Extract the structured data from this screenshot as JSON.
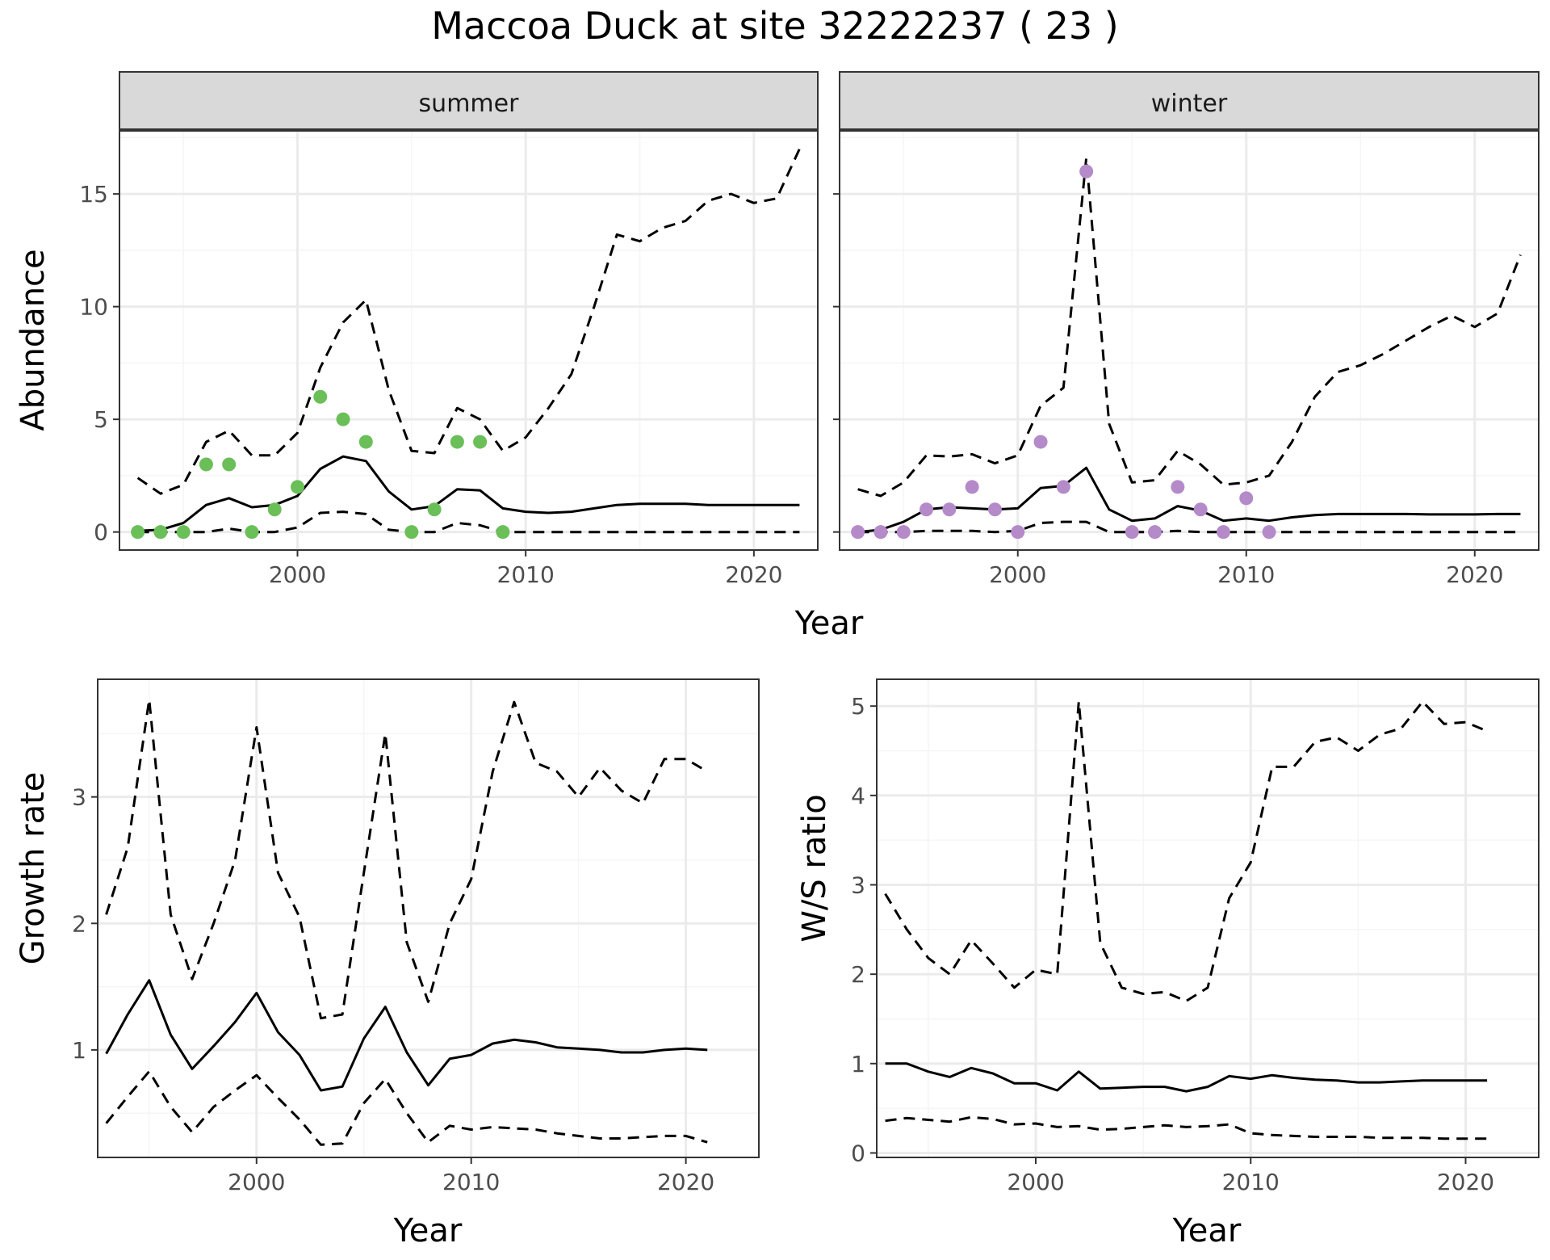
{
  "title": "Maccoa Duck at site 32222237 ( 23 )",
  "colors": {
    "summer_points": "#6bbf59",
    "winter_points": "#b48ac9",
    "line": "#000000",
    "strip_bg": "#d9d9d9",
    "grid_major": "#ebebeb",
    "grid_minor": "#f5f5f5"
  },
  "chart_data": [
    {
      "id": "abundance-summer",
      "type": "line",
      "facet": "summer",
      "xlabel": "Year",
      "ylabel": "Abundance",
      "xlim": [
        1992.2,
        2022.8
      ],
      "ylim": [
        -0.8,
        17.8
      ],
      "xticks": [
        2000,
        2010,
        2020
      ],
      "yticks": [
        0,
        5,
        10,
        15
      ],
      "grid": true,
      "points": {
        "x": [
          1993,
          1994,
          1995,
          1996,
          1997,
          1998,
          1999,
          2000,
          2001,
          2002,
          2003,
          2005,
          2006,
          2007,
          2008,
          2009
        ],
        "y": [
          0,
          0,
          0,
          3,
          3,
          0,
          1,
          2,
          6,
          5,
          4,
          0,
          1,
          4,
          4,
          0
        ]
      },
      "series": [
        {
          "role": "estimate",
          "dash": "solid",
          "x": [
            1993,
            1994,
            1995,
            1996,
            1997,
            1998,
            1999,
            2000,
            2001,
            2002,
            2003,
            2004,
            2005,
            2006,
            2007,
            2008,
            2009,
            2010,
            2011,
            2012,
            2013,
            2014,
            2015,
            2016,
            2017,
            2018,
            2019,
            2020,
            2021,
            2022
          ],
          "y": [
            0.05,
            0.1,
            0.4,
            1.2,
            1.5,
            1.1,
            1.2,
            1.6,
            2.8,
            3.35,
            3.15,
            1.8,
            1.0,
            1.15,
            1.9,
            1.85,
            1.05,
            0.9,
            0.85,
            0.9,
            1.05,
            1.2,
            1.25,
            1.25,
            1.25,
            1.2,
            1.2,
            1.2,
            1.2,
            1.2
          ]
        },
        {
          "role": "upper",
          "dash": "dashed",
          "x": [
            1993,
            1994,
            1995,
            1996,
            1997,
            1998,
            1999,
            2000,
            2001,
            2002,
            2003,
            2004,
            2005,
            2006,
            2007,
            2008,
            2009,
            2010,
            2011,
            2012,
            2013,
            2014,
            2015,
            2016,
            2017,
            2018,
            2019,
            2020,
            2021,
            2022
          ],
          "y": [
            2.4,
            1.7,
            2.1,
            4.0,
            4.5,
            3.4,
            3.4,
            4.4,
            7.3,
            9.3,
            10.3,
            6.3,
            3.6,
            3.5,
            5.5,
            5.0,
            3.6,
            4.2,
            5.5,
            7.0,
            10.0,
            13.2,
            12.9,
            13.5,
            13.8,
            14.7,
            15.0,
            14.6,
            14.8,
            17.0
          ]
        },
        {
          "role": "lower",
          "dash": "dashed",
          "x": [
            1993,
            1994,
            1995,
            1996,
            1997,
            1998,
            1999,
            2000,
            2001,
            2002,
            2003,
            2004,
            2005,
            2006,
            2007,
            2008,
            2009,
            2010,
            2011,
            2012,
            2013,
            2014,
            2015,
            2016,
            2017,
            2018,
            2019,
            2020,
            2021,
            2022
          ],
          "y": [
            0,
            0,
            0,
            0,
            0.15,
            0,
            0,
            0.2,
            0.85,
            0.9,
            0.8,
            0.1,
            0,
            0,
            0.4,
            0.3,
            0,
            0,
            0,
            0,
            0,
            0,
            0,
            0,
            0,
            0,
            0,
            0,
            0,
            0
          ]
        }
      ]
    },
    {
      "id": "abundance-winter",
      "type": "line",
      "facet": "winter",
      "xlabel": "Year",
      "ylabel": "Abundance",
      "xlim": [
        1992.2,
        2022.8
      ],
      "ylim": [
        -0.8,
        17.8
      ],
      "xticks": [
        2000,
        2010,
        2020
      ],
      "yticks": [
        0,
        5,
        10,
        15
      ],
      "grid": true,
      "points": {
        "x": [
          1993,
          1994,
          1995,
          1996,
          1997,
          1998,
          1999,
          2000,
          2001,
          2002,
          2003,
          2005,
          2006,
          2007,
          2008,
          2009,
          2010,
          2011
        ],
        "y": [
          0,
          0,
          0,
          1,
          1,
          2,
          1,
          0,
          4,
          2,
          16,
          0,
          0,
          2,
          1,
          0,
          1.5,
          0
        ]
      },
      "series": [
        {
          "role": "estimate",
          "dash": "solid",
          "x": [
            1993,
            1994,
            1995,
            1996,
            1997,
            1998,
            1999,
            2000,
            2001,
            2002,
            2003,
            2004,
            2005,
            2006,
            2007,
            2008,
            2009,
            2010,
            2011,
            2012,
            2013,
            2014,
            2015,
            2016,
            2017,
            2018,
            2019,
            2020,
            2021,
            2022
          ],
          "y": [
            0.0,
            0.1,
            0.45,
            1.0,
            1.1,
            1.05,
            1.0,
            1.05,
            1.95,
            2.05,
            2.85,
            1.0,
            0.5,
            0.6,
            1.15,
            0.95,
            0.5,
            0.6,
            0.5,
            0.65,
            0.75,
            0.8,
            0.8,
            0.8,
            0.8,
            0.78,
            0.78,
            0.78,
            0.8,
            0.8
          ]
        },
        {
          "role": "upper",
          "dash": "dashed",
          "x": [
            1993,
            1994,
            1995,
            1996,
            1997,
            1998,
            1999,
            2000,
            2001,
            2002,
            2003,
            2004,
            2005,
            2006,
            2007,
            2008,
            2009,
            2010,
            2011,
            2012,
            2013,
            2014,
            2015,
            2016,
            2017,
            2018,
            2019,
            2020,
            2021,
            2022
          ],
          "y": [
            1.9,
            1.6,
            2.2,
            3.4,
            3.35,
            3.45,
            3.05,
            3.4,
            5.6,
            6.4,
            16.6,
            4.8,
            2.2,
            2.3,
            3.6,
            3.0,
            2.1,
            2.2,
            2.5,
            4.0,
            6.0,
            7.1,
            7.4,
            7.9,
            8.5,
            9.1,
            9.6,
            9.1,
            9.7,
            12.3
          ]
        },
        {
          "role": "lower",
          "dash": "dashed",
          "x": [
            1993,
            1994,
            1995,
            1996,
            1997,
            1998,
            1999,
            2000,
            2001,
            2002,
            2003,
            2004,
            2005,
            2006,
            2007,
            2008,
            2009,
            2010,
            2011,
            2012,
            2013,
            2014,
            2015,
            2016,
            2017,
            2018,
            2019,
            2020,
            2021,
            2022
          ],
          "y": [
            0,
            0,
            0,
            0.05,
            0.05,
            0.05,
            0,
            0.05,
            0.4,
            0.45,
            0.45,
            0,
            0,
            0,
            0.05,
            0,
            0,
            0,
            0,
            0,
            0,
            0,
            0,
            0,
            0,
            0,
            0,
            0,
            0,
            0
          ]
        }
      ]
    },
    {
      "id": "growth-rate",
      "type": "line",
      "xlabel": "Year",
      "ylabel": "Growth rate",
      "xlim": [
        1992.6,
        2023.4
      ],
      "ylim": [
        0.15,
        3.93
      ],
      "xticks": [
        2000,
        2010,
        2020
      ],
      "yticks": [
        1,
        2,
        3
      ],
      "grid": true,
      "series": [
        {
          "role": "estimate",
          "dash": "solid",
          "x": [
            1993,
            1994,
            1995,
            1996,
            1997,
            1998,
            1999,
            2000,
            2001,
            2002,
            2003,
            2004,
            2005,
            2006,
            2007,
            2008,
            2009,
            2010,
            2011,
            2012,
            2013,
            2014,
            2015,
            2016,
            2017,
            2018,
            2019,
            2020,
            2021
          ],
          "y": [
            0.97,
            1.28,
            1.55,
            1.12,
            0.85,
            1.03,
            1.22,
            1.45,
            1.14,
            0.96,
            0.68,
            0.71,
            1.09,
            1.34,
            0.98,
            0.72,
            0.93,
            0.96,
            1.05,
            1.08,
            1.06,
            1.02,
            1.01,
            1.0,
            0.98,
            0.98,
            1.0,
            1.01,
            1.0
          ]
        },
        {
          "role": "upper",
          "dash": "dashed",
          "x": [
            1993,
            1994,
            1995,
            1996,
            1997,
            1998,
            1999,
            2000,
            2001,
            2002,
            2003,
            2004,
            2005,
            2006,
            2007,
            2008,
            2009,
            2010,
            2011,
            2012,
            2013,
            2014,
            2015,
            2016,
            2017,
            2018,
            2019,
            2020,
            2021
          ],
          "y": [
            2.07,
            2.6,
            3.77,
            2.07,
            1.56,
            2.0,
            2.5,
            3.55,
            2.4,
            2.05,
            1.25,
            1.28,
            2.4,
            3.5,
            1.85,
            1.38,
            2.0,
            2.35,
            3.2,
            3.75,
            3.27,
            3.2,
            3.0,
            3.23,
            3.05,
            2.95,
            3.3,
            3.3,
            3.2
          ]
        },
        {
          "role": "lower",
          "dash": "dashed",
          "x": [
            1993,
            1994,
            1995,
            1996,
            1997,
            1998,
            1999,
            2000,
            2001,
            2002,
            2003,
            2004,
            2005,
            2006,
            2007,
            2008,
            2009,
            2010,
            2011,
            2012,
            2013,
            2014,
            2015,
            2016,
            2017,
            2018,
            2019,
            2020,
            2021
          ],
          "y": [
            0.42,
            0.63,
            0.83,
            0.55,
            0.35,
            0.55,
            0.68,
            0.8,
            0.62,
            0.45,
            0.25,
            0.26,
            0.58,
            0.77,
            0.5,
            0.27,
            0.4,
            0.37,
            0.39,
            0.38,
            0.37,
            0.34,
            0.32,
            0.3,
            0.3,
            0.31,
            0.32,
            0.32,
            0.27
          ]
        }
      ]
    },
    {
      "id": "ws-ratio",
      "type": "line",
      "xlabel": "Year",
      "ylabel": "W/S ratio",
      "xlim": [
        1992.6,
        2023.4
      ],
      "ylim": [
        -0.05,
        5.3
      ],
      "xticks": [
        2000,
        2010,
        2020
      ],
      "yticks": [
        0,
        1,
        2,
        3,
        4,
        5
      ],
      "grid": true,
      "series": [
        {
          "role": "estimate",
          "dash": "solid",
          "x": [
            1993,
            1994,
            1995,
            1996,
            1997,
            1998,
            1999,
            2000,
            2001,
            2002,
            2003,
            2004,
            2005,
            2006,
            2007,
            2008,
            2009,
            2010,
            2011,
            2012,
            2013,
            2014,
            2015,
            2016,
            2017,
            2018,
            2019,
            2020,
            2021
          ],
          "y": [
            1.0,
            1.0,
            0.91,
            0.85,
            0.95,
            0.89,
            0.78,
            0.78,
            0.7,
            0.91,
            0.72,
            0.73,
            0.74,
            0.74,
            0.69,
            0.74,
            0.86,
            0.83,
            0.87,
            0.84,
            0.82,
            0.81,
            0.79,
            0.79,
            0.8,
            0.81,
            0.81,
            0.81,
            0.81
          ]
        },
        {
          "role": "upper",
          "dash": "dashed",
          "x": [
            1993,
            1994,
            1995,
            1996,
            1997,
            1998,
            1999,
            2000,
            2001,
            2002,
            2003,
            2004,
            2005,
            2006,
            2007,
            2008,
            2009,
            2010,
            2011,
            2012,
            2013,
            2014,
            2015,
            2016,
            2017,
            2018,
            2019,
            2020,
            2021
          ],
          "y": [
            2.9,
            2.5,
            2.18,
            2.0,
            2.38,
            2.12,
            1.85,
            2.05,
            2.0,
            5.05,
            2.35,
            1.85,
            1.78,
            1.8,
            1.7,
            1.85,
            2.85,
            3.25,
            4.32,
            4.32,
            4.6,
            4.65,
            4.5,
            4.68,
            4.75,
            5.05,
            4.8,
            4.82,
            4.72
          ]
        },
        {
          "role": "lower",
          "dash": "dashed",
          "x": [
            1993,
            1994,
            1995,
            1996,
            1997,
            1998,
            1999,
            2000,
            2001,
            2002,
            2003,
            2004,
            2005,
            2006,
            2007,
            2008,
            2009,
            2010,
            2011,
            2012,
            2013,
            2014,
            2015,
            2016,
            2017,
            2018,
            2019,
            2020,
            2021
          ],
          "y": [
            0.36,
            0.39,
            0.37,
            0.35,
            0.4,
            0.38,
            0.32,
            0.33,
            0.29,
            0.3,
            0.26,
            0.27,
            0.29,
            0.31,
            0.29,
            0.3,
            0.32,
            0.22,
            0.2,
            0.19,
            0.18,
            0.18,
            0.18,
            0.17,
            0.17,
            0.17,
            0.16,
            0.16,
            0.16
          ]
        }
      ]
    }
  ]
}
